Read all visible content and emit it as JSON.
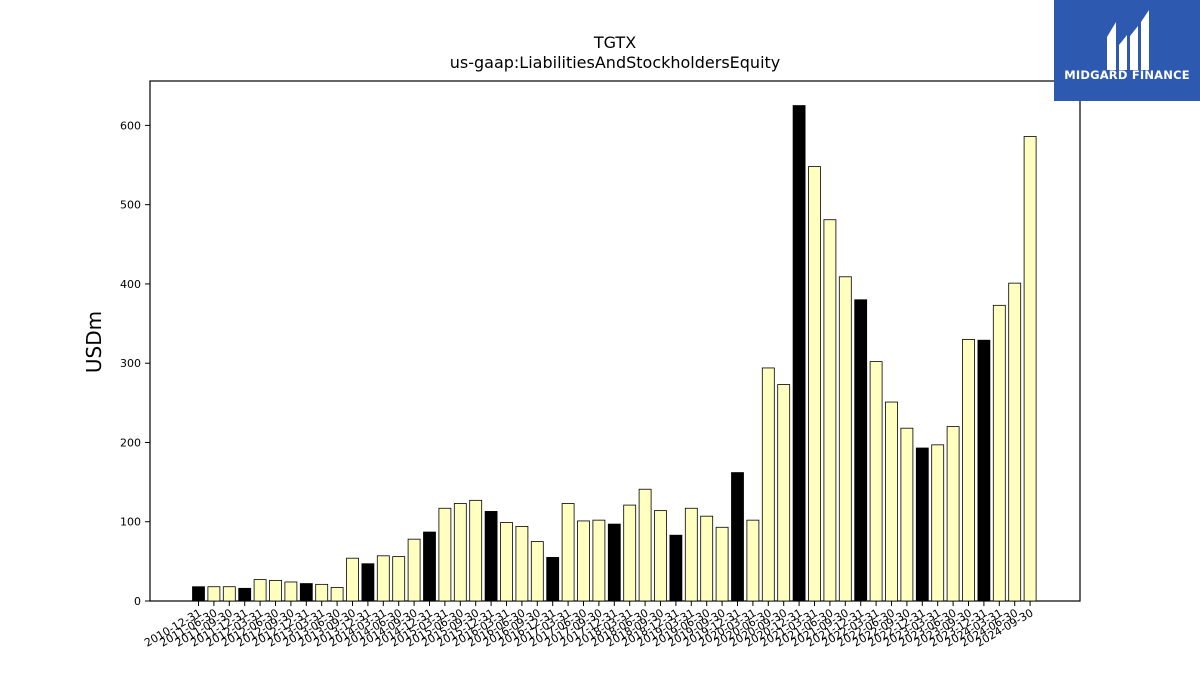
{
  "colors": {
    "normal_bar": "#ffffc0",
    "highlight_bar": "#000000",
    "bar_edge": "#000000",
    "logo_bg": "#2d59b0",
    "logo_fg": "#ffffff"
  },
  "logo": {
    "text": "MIDGARD FINANCE",
    "icon": "midgard-logo-icon"
  },
  "chart_data": {
    "type": "bar",
    "title": "TGTX",
    "subtitle": "us-gaap:LiabilitiesAndStockholdersEquity",
    "xlabel": "",
    "ylabel": "USDm",
    "ylim": [
      0,
      656
    ],
    "yticks": [
      0,
      100,
      200,
      300,
      400,
      500,
      600
    ],
    "grid": false,
    "categories": [
      "2010-12-31",
      "2011-06-30",
      "2011-09-30",
      "2011-12-31",
      "2012-03-31",
      "2012-06-30",
      "2012-09-30",
      "2012-12-31",
      "2013-03-31",
      "2013-06-30",
      "2013-09-30",
      "2013-12-31",
      "2014-03-31",
      "2014-06-30",
      "2014-09-30",
      "2014-12-31",
      "2015-03-31",
      "2015-06-30",
      "2015-09-30",
      "2015-12-31",
      "2016-03-31",
      "2016-06-30",
      "2016-09-30",
      "2016-12-31",
      "2017-03-31",
      "2017-06-30",
      "2017-09-30",
      "2017-12-31",
      "2018-03-31",
      "2018-06-30",
      "2018-09-30",
      "2018-12-31",
      "2019-03-31",
      "2019-06-30",
      "2019-09-30",
      "2019-12-31",
      "2020-03-31",
      "2020-06-30",
      "2020-09-30",
      "2020-12-31",
      "2021-03-31",
      "2021-06-30",
      "2021-09-30",
      "2021-12-31",
      "2022-03-31",
      "2022-06-30",
      "2022-09-30",
      "2022-12-31",
      "2023-03-31",
      "2023-06-30",
      "2023-09-30",
      "2023-12-31",
      "2024-03-31",
      "2024-06-30",
      "2024-09-30"
    ],
    "values": [
      18,
      18,
      18,
      16,
      27,
      26,
      24,
      22,
      21,
      17,
      54,
      47,
      57,
      56,
      78,
      87,
      117,
      123,
      127,
      113,
      99,
      94,
      75,
      55,
      123,
      101,
      102,
      97,
      121,
      141,
      114,
      83,
      117,
      107,
      93,
      162,
      102,
      294,
      273,
      625,
      548,
      481,
      409,
      380,
      302,
      251,
      218,
      193,
      197,
      220,
      330,
      329,
      373,
      401,
      586
    ],
    "highlighted": [
      true,
      false,
      false,
      true,
      false,
      false,
      false,
      true,
      false,
      false,
      false,
      true,
      false,
      false,
      false,
      true,
      false,
      false,
      false,
      true,
      false,
      false,
      false,
      true,
      false,
      false,
      false,
      true,
      false,
      false,
      false,
      true,
      false,
      false,
      false,
      true,
      false,
      false,
      false,
      true,
      false,
      false,
      false,
      true,
      false,
      false,
      false,
      true,
      false,
      false,
      false,
      true,
      false,
      false,
      false
    ]
  }
}
